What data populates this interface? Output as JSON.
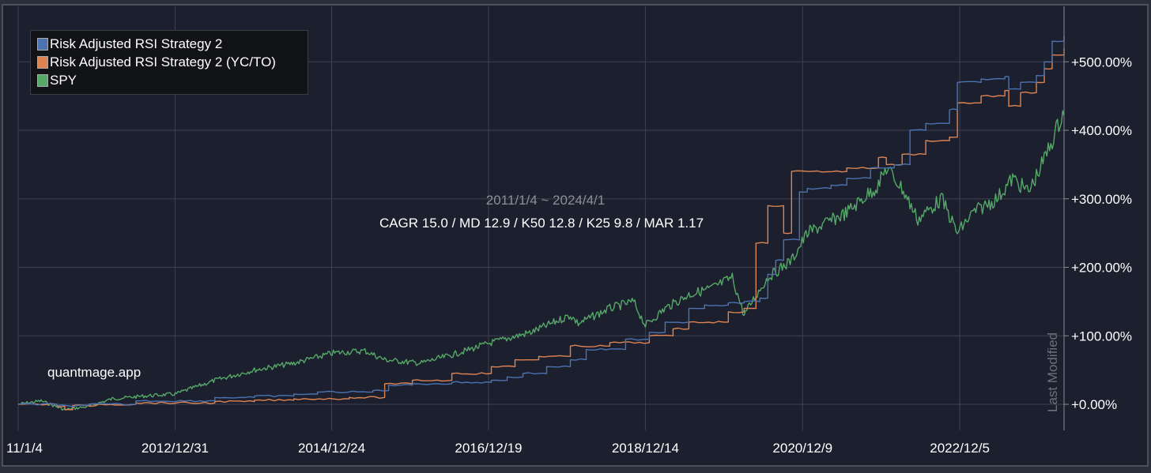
{
  "chart_data": {
    "type": "line",
    "date_range": "2011/1/4 ~ 2024/4/1",
    "stats": "CAGR 15.0 / MD 12.9 / K50 12.8 / K25 9.8 / MAR 1.17",
    "watermark": "quantmage.app",
    "side_label": "Last Modified",
    "x_ticks": [
      "11/1/4",
      "2012/12/31",
      "2014/12/24",
      "2016/12/19",
      "2018/12/14",
      "2020/12/9",
      "2022/12/5"
    ],
    "x_tick_years": [
      2011.01,
      2012.996,
      2014.978,
      2016.964,
      2018.95,
      2020.94,
      2022.93
    ],
    "y_ticks": [
      "+0.00%",
      "+100.00%",
      "+200.00%",
      "+300.00%",
      "+400.00%",
      "+500.00%"
    ],
    "y_tick_values": [
      0,
      100,
      200,
      300,
      400,
      500
    ],
    "x_range": [
      2011.01,
      2024.25
    ],
    "y_range": [
      -10,
      555
    ],
    "grid": true,
    "legend_position": "top-left",
    "series": [
      {
        "name": "Risk Adjusted RSI Strategy 2",
        "color": "#4c72b0",
        "step": true,
        "points": [
          [
            2011.01,
            0
          ],
          [
            2011.5,
            -2
          ],
          [
            2011.9,
            0
          ],
          [
            2012.5,
            5
          ],
          [
            2013.5,
            10
          ],
          [
            2014.0,
            12
          ],
          [
            2014.5,
            15
          ],
          [
            2014.8,
            18
          ],
          [
            2015.5,
            20
          ],
          [
            2015.7,
            28
          ],
          [
            2016.0,
            30
          ],
          [
            2016.5,
            32
          ],
          [
            2017.0,
            35
          ],
          [
            2017.2,
            40
          ],
          [
            2017.4,
            45
          ],
          [
            2017.7,
            55
          ],
          [
            2018.0,
            65
          ],
          [
            2018.2,
            80
          ],
          [
            2018.7,
            95
          ],
          [
            2019.0,
            105
          ],
          [
            2019.2,
            120
          ],
          [
            2019.5,
            140
          ],
          [
            2019.7,
            145
          ],
          [
            2020.0,
            148
          ],
          [
            2020.2,
            150
          ],
          [
            2020.4,
            155
          ],
          [
            2020.5,
            190
          ],
          [
            2020.6,
            210
          ],
          [
            2020.7,
            240
          ],
          [
            2020.9,
            310
          ],
          [
            2021.0,
            315
          ],
          [
            2021.3,
            320
          ],
          [
            2021.5,
            330
          ],
          [
            2021.8,
            345
          ],
          [
            2022.0,
            345
          ],
          [
            2022.1,
            350
          ],
          [
            2022.3,
            400
          ],
          [
            2022.5,
            410
          ],
          [
            2022.8,
            430
          ],
          [
            2022.9,
            470
          ],
          [
            2023.2,
            475
          ],
          [
            2023.5,
            478
          ],
          [
            2023.55,
            460
          ],
          [
            2023.7,
            470
          ],
          [
            2023.9,
            480
          ],
          [
            2024.0,
            500
          ],
          [
            2024.1,
            530
          ],
          [
            2024.25,
            538
          ]
        ]
      },
      {
        "name": "Risk Adjusted RSI Strategy 2 (YC/TO)",
        "color": "#dd8452",
        "step": true,
        "points": [
          [
            2011.01,
            0
          ],
          [
            2011.5,
            -3
          ],
          [
            2011.6,
            -8
          ],
          [
            2011.7,
            -2
          ],
          [
            2012.0,
            0
          ],
          [
            2012.5,
            2
          ],
          [
            2013.5,
            4
          ],
          [
            2014.0,
            6
          ],
          [
            2014.5,
            8
          ],
          [
            2015.2,
            10
          ],
          [
            2015.65,
            30
          ],
          [
            2016.0,
            35
          ],
          [
            2016.5,
            45
          ],
          [
            2017.0,
            55
          ],
          [
            2017.3,
            65
          ],
          [
            2017.6,
            70
          ],
          [
            2018.0,
            85
          ],
          [
            2018.5,
            90
          ],
          [
            2019.0,
            100
          ],
          [
            2019.3,
            110
          ],
          [
            2019.5,
            120
          ],
          [
            2020.0,
            135
          ],
          [
            2020.2,
            140
          ],
          [
            2020.35,
            235
          ],
          [
            2020.5,
            290
          ],
          [
            2020.7,
            250
          ],
          [
            2020.8,
            340
          ],
          [
            2021.0,
            340
          ],
          [
            2021.5,
            345
          ],
          [
            2021.9,
            360
          ],
          [
            2022.0,
            350
          ],
          [
            2022.2,
            365
          ],
          [
            2022.5,
            385
          ],
          [
            2022.8,
            390
          ],
          [
            2022.9,
            440
          ],
          [
            2023.2,
            450
          ],
          [
            2023.5,
            458
          ],
          [
            2023.55,
            435
          ],
          [
            2023.7,
            455
          ],
          [
            2023.9,
            470
          ],
          [
            2024.0,
            490
          ],
          [
            2024.1,
            510
          ],
          [
            2024.25,
            520
          ]
        ]
      },
      {
        "name": "SPY",
        "color": "#55a868",
        "step": false,
        "points": [
          [
            2011.01,
            0
          ],
          [
            2011.3,
            5
          ],
          [
            2011.6,
            -8
          ],
          [
            2011.9,
            -3
          ],
          [
            2012.2,
            8
          ],
          [
            2012.6,
            12
          ],
          [
            2013.0,
            15
          ],
          [
            2013.5,
            35
          ],
          [
            2014.0,
            50
          ],
          [
            2014.5,
            60
          ],
          [
            2015.0,
            75
          ],
          [
            2015.4,
            78
          ],
          [
            2015.65,
            65
          ],
          [
            2016.1,
            60
          ],
          [
            2016.5,
            72
          ],
          [
            2017.0,
            90
          ],
          [
            2017.5,
            105
          ],
          [
            2018.0,
            130
          ],
          [
            2018.1,
            118
          ],
          [
            2018.5,
            140
          ],
          [
            2018.8,
            150
          ],
          [
            2018.95,
            115
          ],
          [
            2019.2,
            140
          ],
          [
            2019.5,
            160
          ],
          [
            2019.8,
            170
          ],
          [
            2020.05,
            185
          ],
          [
            2020.2,
            130
          ],
          [
            2020.3,
            150
          ],
          [
            2020.5,
            185
          ],
          [
            2020.8,
            210
          ],
          [
            2021.0,
            250
          ],
          [
            2021.5,
            280
          ],
          [
            2021.9,
            320
          ],
          [
            2022.0,
            345
          ],
          [
            2022.2,
            315
          ],
          [
            2022.4,
            270
          ],
          [
            2022.7,
            300
          ],
          [
            2022.9,
            250
          ],
          [
            2023.1,
            280
          ],
          [
            2023.4,
            300
          ],
          [
            2023.6,
            330
          ],
          [
            2023.8,
            310
          ],
          [
            2023.95,
            345
          ],
          [
            2024.1,
            385
          ],
          [
            2024.25,
            430
          ]
        ]
      }
    ]
  }
}
